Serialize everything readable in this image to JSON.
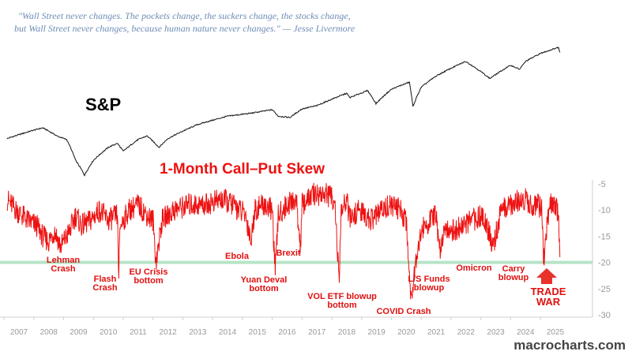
{
  "quote": {
    "line1": "\"Wall Street never changes. The pockets change, the suckers change, the stocks change,",
    "line2": "but Wall Street never changes, because human nature never changes.\" — Jesse Livermore"
  },
  "watermark": "macrocharts.com",
  "colors": {
    "sp_line": "#111111",
    "skew_line": "#ee1111",
    "threshold": "#b7e4c7",
    "annotation": "#e01010",
    "arrow": "#e8322a",
    "axis_text": "#9a9a9a"
  },
  "chart_data": [
    {
      "type": "line",
      "title": "S&P",
      "scale": "log",
      "x": [
        2006.6,
        2007.5,
        2007.8,
        2008.3,
        2008.6,
        2008.9,
        2009.2,
        2009.5,
        2010.0,
        2010.3,
        2010.5,
        2011.0,
        2011.3,
        2011.7,
        2012.0,
        2013.0,
        2014.0,
        2014.8,
        2015.5,
        2015.7,
        2016.1,
        2016.5,
        2017.0,
        2018.0,
        2018.1,
        2018.7,
        2018.98,
        2019.5,
        2020.1,
        2020.22,
        2020.5,
        2021.0,
        2021.99,
        2022.8,
        2023.0,
        2023.5,
        2023.8,
        2024.0,
        2024.5,
        2024.9,
        2025.1,
        2025.15
      ],
      "values": [
        1300,
        1500,
        1560,
        1350,
        1280,
        900,
        700,
        900,
        1120,
        1200,
        1050,
        1280,
        1360,
        1120,
        1300,
        1650,
        1900,
        2000,
        2120,
        1900,
        1860,
        2150,
        2270,
        2800,
        2600,
        2930,
        2350,
        3000,
        3380,
        2230,
        3100,
        3750,
        4800,
        3600,
        3850,
        4500,
        4200,
        4800,
        5500,
        5900,
        6100,
        5600
      ]
    },
    {
      "type": "line",
      "title": "1-Month Call–Put Skew",
      "yticks": [
        -5,
        -10,
        -15,
        -20,
        -25,
        -30
      ],
      "ylim": [
        -30,
        -5
      ],
      "threshold": -20,
      "xticks": [
        "2007",
        "2008",
        "2009",
        "2010",
        "2011",
        "2012",
        "2013",
        "2014",
        "2015",
        "2016",
        "2017",
        "2018",
        "2019",
        "2020",
        "2021",
        "2022",
        "2023",
        "2024",
        "2025"
      ],
      "x": [
        2006.6,
        2006.9,
        2007.3,
        2007.6,
        2007.8,
        2008.0,
        2008.2,
        2008.4,
        2008.7,
        2008.9,
        2009.1,
        2009.4,
        2009.7,
        2010.0,
        2010.3,
        2010.35,
        2010.4,
        2010.7,
        2011.0,
        2011.3,
        2011.5,
        2011.6,
        2011.8,
        2012.2,
        2012.7,
        2013.2,
        2013.8,
        2014.2,
        2014.6,
        2014.8,
        2014.9,
        2015.2,
        2015.5,
        2015.6,
        2015.7,
        2016.0,
        2016.3,
        2016.45,
        2016.5,
        2016.9,
        2017.3,
        2017.6,
        2017.75,
        2017.8,
        2018.0,
        2018.1,
        2018.4,
        2018.8,
        2019.0,
        2019.4,
        2019.8,
        2020.0,
        2020.15,
        2020.3,
        2020.5,
        2020.8,
        2021.0,
        2021.1,
        2021.3,
        2021.6,
        2021.9,
        2022.2,
        2022.6,
        2022.9,
        2023.2,
        2023.5,
        2023.8,
        2024.0,
        2024.2,
        2024.4,
        2024.55,
        2024.6,
        2024.8,
        2025.0,
        2025.1,
        2025.15
      ],
      "values": [
        -8,
        -10,
        -12,
        -13,
        -15,
        -16,
        -14,
        -17,
        -14,
        -11,
        -13,
        -12,
        -10,
        -12,
        -11,
        -22,
        -13,
        -10,
        -9,
        -11,
        -12,
        -20,
        -12,
        -10,
        -9,
        -9,
        -8,
        -9,
        -11,
        -16,
        -10,
        -9,
        -10,
        -22,
        -11,
        -9,
        -8,
        -17,
        -9,
        -7,
        -7,
        -8,
        -25,
        -11,
        -8,
        -12,
        -10,
        -12,
        -11,
        -9,
        -10,
        -12,
        -27,
        -20,
        -14,
        -12,
        -11,
        -18,
        -13,
        -14,
        -13,
        -12,
        -11,
        -17,
        -10,
        -9,
        -8,
        -8,
        -9,
        -9,
        -10,
        -20,
        -9,
        -9,
        -11,
        -19
      ],
      "annotations": [
        {
          "text": "Lehman",
          "text2": "Crash",
          "x": 2008.4
        },
        {
          "text": "Flash",
          "text2": "Crash",
          "x": 2010.35
        },
        {
          "text": "EU Crisis",
          "text2": "bottom",
          "x": 2011.6
        },
        {
          "text": "Ebola",
          "text2": "",
          "x": 2014.8
        },
        {
          "text": "Yuan Deval",
          "text2": "bottom",
          "x": 2015.6
        },
        {
          "text": "Brexit",
          "text2": "",
          "x": 2016.45
        },
        {
          "text": "VOL ETF blowup",
          "text2": "bottom",
          "x": 2017.75
        },
        {
          "text": "COVID Crash",
          "text2": "",
          "x": 2020.15
        },
        {
          "text": "L/S Funds",
          "text2": "blowup",
          "x": 2021.1
        },
        {
          "text": "Omicron",
          "text2": "",
          "x": 2021.9
        },
        {
          "text": "Carry",
          "text2": "blowup",
          "x": 2024.6
        },
        {
          "text": "TRADE",
          "text2": "WAR",
          "x": 2025.15
        }
      ]
    }
  ]
}
